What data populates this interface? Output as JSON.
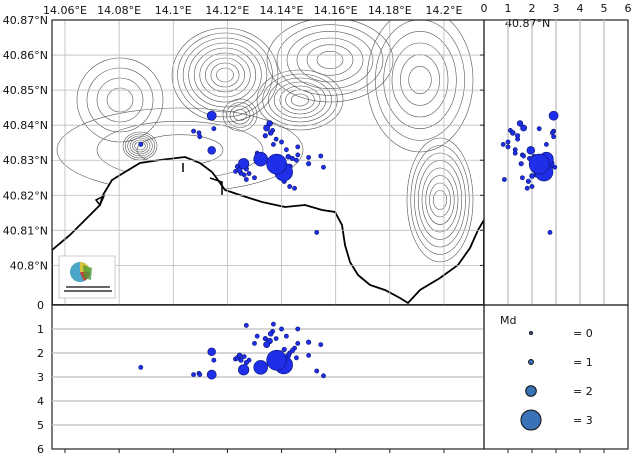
{
  "map": {
    "lon_ticks": [
      14.06,
      14.08,
      14.1,
      14.12,
      14.14,
      14.16,
      14.18,
      14.2
    ],
    "lon_labels": [
      "14.06°E",
      "14.08°E",
      "14.1°E",
      "14.12°E",
      "14.14°E",
      "14.16°E",
      "14.18°E",
      "14.2°E"
    ],
    "lat_ticks": [
      40.87,
      40.86,
      40.85,
      40.84,
      40.83,
      40.82,
      40.81,
      40.8
    ],
    "lat_labels": [
      "40.87°N",
      "40.86°N",
      "40.85°N",
      "40.84°N",
      "40.83°N",
      "40.82°N",
      "40.81°N",
      "40.8°N"
    ],
    "lon_range": [
      14.0552,
      14.2148
    ],
    "lat_range": [
      40.7887,
      40.87
    ],
    "grid": true,
    "clipped_label": "40.87°N",
    "logo_text": "ISTITUTO NAZIONALE DI GEOFISICA E VULCANOLOGIA"
  },
  "depth_section": {
    "depth_ticks": [
      "0",
      "1",
      "2",
      "3",
      "4",
      "5",
      "6"
    ],
    "depth_range": [
      0,
      6
    ],
    "grid": true
  },
  "lat_section": {
    "depth_ticks": [
      "0",
      "1",
      "2",
      "3",
      "4",
      "5",
      "6"
    ],
    "depth_range": [
      0,
      6
    ]
  },
  "legend": {
    "title": "Md",
    "entries": [
      {
        "mag": 0,
        "label": "= 0"
      },
      {
        "mag": 1,
        "label": "= 1"
      },
      {
        "mag": 2,
        "label": "= 2"
      },
      {
        "mag": 3,
        "label": "= 3"
      }
    ],
    "color": "#3a72b8"
  },
  "colors": {
    "event": "#1f2ee8",
    "event_edge": "#0a1470",
    "coast": "#000000",
    "contour": "#555555",
    "grid": "#c8c8c8"
  },
  "chart_data": {
    "type": "scatter",
    "xlabel": "",
    "ylabel": "",
    "fields": [
      "lon",
      "lat",
      "depth_km",
      "Md"
    ],
    "events": [
      [
        14.1382,
        40.8289,
        2.3,
        3.0
      ],
      [
        14.1408,
        40.8266,
        2.5,
        2.8
      ],
      [
        14.1323,
        40.8303,
        2.6,
        2.4
      ],
      [
        14.126,
        40.829,
        2.7,
        2.0
      ],
      [
        14.1142,
        40.8427,
        2.9,
        1.8
      ],
      [
        14.1142,
        40.8328,
        1.95,
        1.6
      ],
      [
        14.1356,
        40.8405,
        1.5,
        1.2
      ],
      [
        14.1345,
        40.8392,
        1.65,
        1.3
      ],
      [
        14.136,
        40.8378,
        1.2,
        1.0
      ],
      [
        14.134,
        40.837,
        1.4,
        0.9
      ],
      [
        14.1367,
        40.8385,
        1.1,
        0.8
      ],
      [
        14.088,
        40.8345,
        2.6,
        0.8
      ],
      [
        14.1075,
        40.8383,
        2.9,
        0.8
      ],
      [
        14.1095,
        40.8378,
        2.85,
        0.8
      ],
      [
        14.1098,
        40.8367,
        2.9,
        0.8
      ],
      [
        14.153,
        40.8094,
        2.75,
        0.8
      ],
      [
        14.1238,
        40.8282,
        2.2,
        1.0
      ],
      [
        14.1245,
        40.8272,
        2.1,
        1.0
      ],
      [
        14.125,
        40.8263,
        2.3,
        0.9
      ],
      [
        14.123,
        40.8268,
        2.25,
        0.8
      ],
      [
        14.1262,
        40.8258,
        2.15,
        0.8
      ],
      [
        14.127,
        40.8275,
        2.4,
        0.9
      ],
      [
        14.128,
        40.8262,
        2.3,
        0.8
      ],
      [
        14.1425,
        40.831,
        2.1,
        1.0
      ],
      [
        14.144,
        40.8305,
        1.9,
        0.9
      ],
      [
        14.1455,
        40.83,
        2.2,
        0.8
      ],
      [
        14.146,
        40.8315,
        1.6,
        0.8
      ],
      [
        14.15,
        40.8308,
        2.1,
        0.8
      ],
      [
        14.1545,
        40.8312,
        1.65,
        0.8
      ],
      [
        14.143,
        40.8225,
        2.0,
        0.8
      ],
      [
        14.1448,
        40.822,
        1.8,
        0.8
      ],
      [
        14.142,
        40.8262,
        2.3,
        1.2
      ],
      [
        14.1395,
        40.8255,
        2.0,
        1.0
      ],
      [
        14.141,
        40.824,
        1.85,
        0.9
      ],
      [
        14.137,
        40.8345,
        0.8,
        0.8
      ],
      [
        14.14,
        40.8352,
        1.0,
        0.8
      ],
      [
        14.146,
        40.8338,
        1.0,
        0.8
      ],
      [
        14.15,
        40.829,
        1.55,
        0.9
      ],
      [
        14.138,
        40.836,
        1.4,
        0.8
      ],
      [
        14.1418,
        40.833,
        1.3,
        0.8
      ],
      [
        14.13,
        40.825,
        1.6,
        0.8
      ],
      [
        14.131,
        40.832,
        1.3,
        0.8
      ],
      [
        14.139,
        40.828,
        2.6,
        1.4
      ],
      [
        14.143,
        40.8282,
        2.4,
        1.1
      ],
      [
        14.1555,
        40.828,
        2.95,
        0.8
      ],
      [
        14.127,
        40.8245,
        0.85,
        0.8
      ],
      [
        14.115,
        40.839,
        2.3,
        0.8
      ]
    ]
  }
}
